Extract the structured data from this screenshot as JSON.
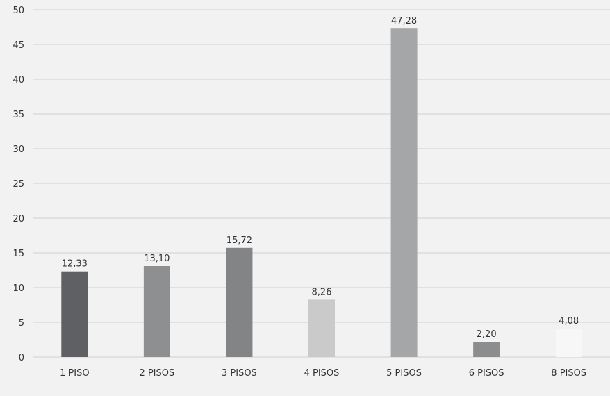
{
  "chart_data": {
    "type": "bar",
    "categories": [
      "1 PISO",
      "2 PISOS",
      "3 PISOS",
      "4 PISOS",
      "5 PISOS",
      "6 PISOS",
      "8 PISOS"
    ],
    "values": [
      12.33,
      13.1,
      15.72,
      8.26,
      47.28,
      2.2,
      4.08
    ],
    "value_labels": [
      "12,33",
      "13,10",
      "15,72",
      "8,26",
      "47,28",
      "2,20",
      "4,08"
    ],
    "bar_colors": [
      "#5f6064",
      "#8e8f91",
      "#838486",
      "#cacaca",
      "#a5a6a8",
      "#8c8d8f",
      "#f7f7f7"
    ],
    "title": "",
    "xlabel": "",
    "ylabel": "",
    "ylim": [
      0,
      50
    ],
    "yticks": [
      0,
      5,
      10,
      15,
      20,
      25,
      30,
      35,
      40,
      45,
      50
    ],
    "grid": true,
    "legend": "none"
  }
}
